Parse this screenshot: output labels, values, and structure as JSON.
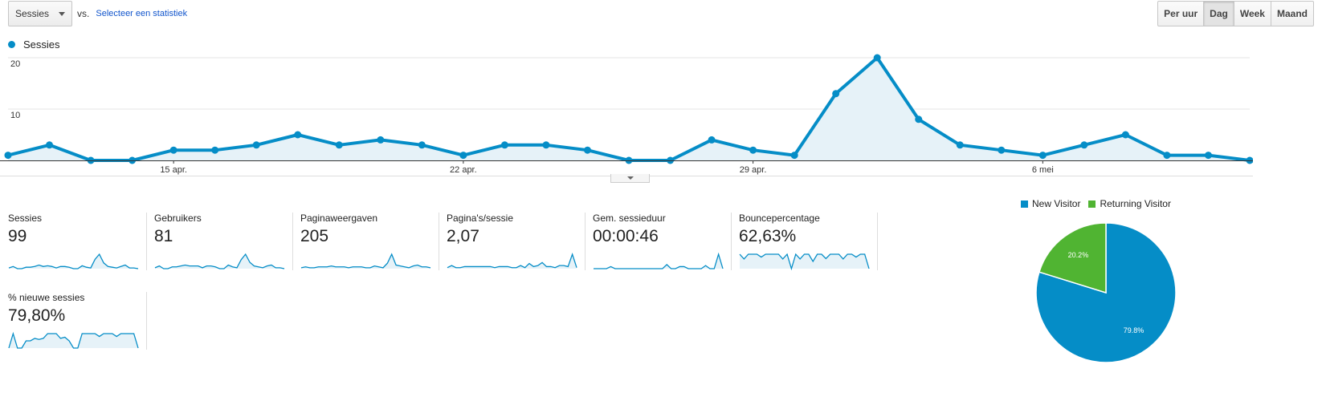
{
  "toolbar": {
    "metric_label": "Sessies",
    "vs_label": "vs.",
    "select_stat_link": "Selecteer een statistiek"
  },
  "range_buttons": [
    {
      "label": "Per uur",
      "active": false
    },
    {
      "label": "Dag",
      "active": true
    },
    {
      "label": "Week",
      "active": false
    },
    {
      "label": "Maand",
      "active": false
    }
  ],
  "colors": {
    "series": "#058dc7",
    "fill": "#e6f2f8",
    "new_visitor": "#058dc7",
    "returning_visitor": "#50b432"
  },
  "chart_data": [
    {
      "type": "area",
      "series": [
        {
          "name": "Sessies",
          "values": [
            1,
            3,
            0,
            0,
            2,
            2,
            3,
            5,
            3,
            4,
            3,
            1,
            3,
            3,
            2,
            0,
            0,
            4,
            2,
            1,
            13,
            20,
            8,
            3,
            2,
            1,
            3,
            5,
            1,
            1,
            0
          ]
        }
      ],
      "y_tick_labels": [
        "10",
        "20"
      ],
      "ylim": [
        0,
        20
      ],
      "x_tick_labels": [
        {
          "label": "15 apr.",
          "index": 4
        },
        {
          "label": "22 apr.",
          "index": 11
        },
        {
          "label": "29 apr.",
          "index": 18
        },
        {
          "label": "6 mei",
          "index": 25
        }
      ],
      "grid": true,
      "legend": "top-left"
    },
    {
      "type": "pie",
      "slices": [
        {
          "name": "New Visitor",
          "value": 79.8,
          "label": "79.8%"
        },
        {
          "name": "Returning Visitor",
          "value": 20.2,
          "label": "20.2%"
        }
      ],
      "legend": "top"
    }
  ],
  "tiles": [
    {
      "name": "Sessies",
      "value": "99",
      "spark": [
        1,
        3,
        0,
        0,
        2,
        2,
        3,
        5,
        3,
        4,
        3,
        1,
        3,
        3,
        2,
        0,
        0,
        4,
        2,
        1,
        13,
        20,
        8,
        3,
        2,
        1,
        3,
        5,
        1,
        1,
        0
      ]
    },
    {
      "name": "Gebruikers",
      "value": "81",
      "spark": [
        1,
        3,
        0,
        0,
        2,
        2,
        3,
        4,
        3,
        3,
        3,
        1,
        3,
        3,
        2,
        0,
        0,
        4,
        2,
        1,
        10,
        16,
        7,
        3,
        2,
        1,
        3,
        4,
        1,
        1,
        0
      ]
    },
    {
      "name": "Paginaweergaven",
      "value": "205",
      "spark": [
        1,
        2,
        1,
        1,
        2,
        2,
        2,
        3,
        2,
        2,
        2,
        1,
        2,
        2,
        2,
        1,
        1,
        3,
        2,
        1,
        6,
        16,
        4,
        3,
        2,
        1,
        3,
        4,
        2,
        2,
        1
      ]
    },
    {
      "name": "Pagina's/sessie",
      "value": "2,07",
      "spark": [
        1,
        3,
        1,
        1,
        2,
        2,
        2,
        2,
        2,
        2,
        2,
        1,
        2,
        2,
        2,
        1,
        1,
        3,
        1,
        5,
        2,
        3,
        6,
        2,
        2,
        1,
        3,
        3,
        2,
        14,
        1
      ]
    },
    {
      "name": "Gem. sessieduur",
      "value": "00:00:46",
      "spark": [
        0,
        0,
        0,
        0,
        2,
        0,
        0,
        0,
        0,
        0,
        0,
        0,
        0,
        0,
        0,
        0,
        0,
        4,
        0,
        0,
        2,
        2,
        0,
        0,
        0,
        0,
        3,
        0,
        0,
        14,
        0
      ]
    },
    {
      "name": "Bouncepercentage",
      "value": "62,63%",
      "spark": [
        100,
        67,
        100,
        100,
        100,
        80,
        100,
        100,
        100,
        100,
        67,
        100,
        0,
        100,
        67,
        100,
        100,
        50,
        100,
        100,
        70,
        100,
        100,
        100,
        67,
        100,
        100,
        80,
        100,
        100,
        0
      ]
    },
    {
      "name": "% nieuwe sessies",
      "value": "79,80%",
      "spark": [
        0,
        100,
        0,
        0,
        50,
        50,
        67,
        60,
        67,
        100,
        100,
        100,
        67,
        75,
        50,
        0,
        0,
        100,
        100,
        100,
        100,
        80,
        100,
        100,
        100,
        80,
        100,
        100,
        100,
        100,
        0
      ]
    }
  ]
}
